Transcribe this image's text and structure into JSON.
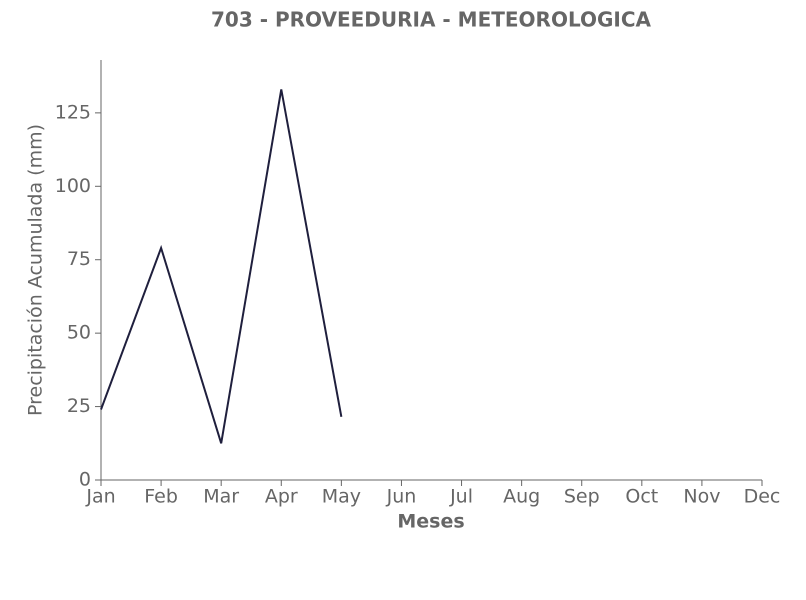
{
  "chart_data": {
    "type": "line",
    "title": "703 - PROVEEDURIA - METEOROLOGICA",
    "x_label": "Meses",
    "y_label": "Precipitación Acumulada (mm)",
    "categories": [
      "Jan",
      "Feb",
      "Mar",
      "Apr",
      "May",
      "Jun",
      "Jul",
      "Aug",
      "Sep",
      "Oct",
      "Nov",
      "Dec"
    ],
    "values": [
      24,
      79,
      12.5,
      133,
      21.5,
      null,
      null,
      null,
      null,
      null,
      null,
      null
    ],
    "color": "#1f1f3d",
    "ylim": [
      0,
      143
    ],
    "yticks": [
      0,
      25,
      50,
      75,
      100,
      125
    ],
    "grid": false
  }
}
